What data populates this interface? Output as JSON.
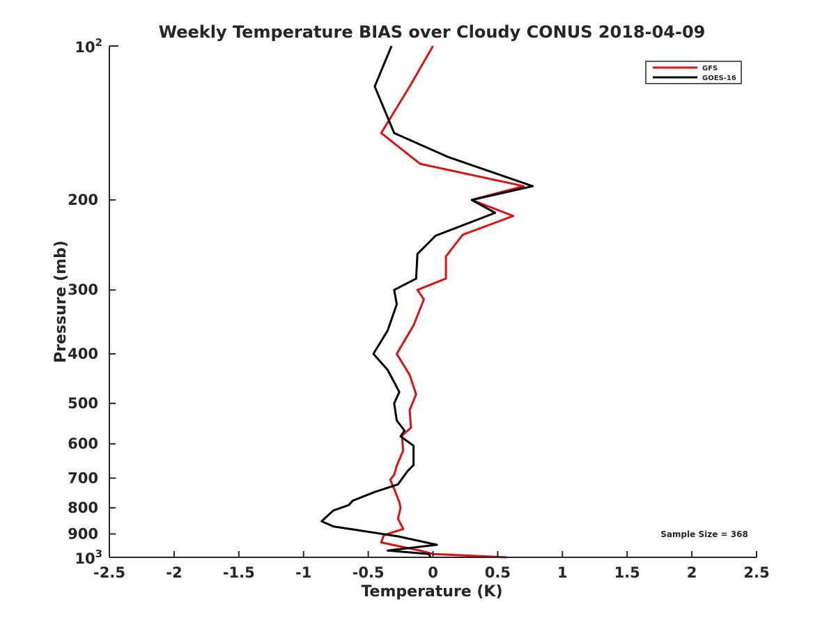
{
  "chart_data": {
    "type": "line",
    "title": "Weekly Temperature BIAS over Cloudy CONUS 2018-04-09",
    "xlabel": "Temperature (K)",
    "ylabel": "Pressure (mb)",
    "xlim": [
      -2.5,
      2.5
    ],
    "ylim": [
      100,
      1000
    ],
    "y_scale": "log",
    "y_reversed": true,
    "x_ticks": [
      -2.5,
      -2,
      -1.5,
      -1,
      -0.5,
      0,
      0.5,
      1,
      1.5,
      2,
      2.5
    ],
    "x_tick_labels": [
      "-2.5",
      "-2",
      "-1.5",
      "-1",
      "-0.5",
      "0",
      "0.5",
      "1",
      "1.5",
      "2",
      "2.5"
    ],
    "y_ticks": [
      200,
      300,
      400,
      500,
      600,
      700,
      800,
      900
    ],
    "y_tick_labels": [
      "200",
      "300",
      "400",
      "500",
      "600",
      "700",
      "800",
      "900"
    ],
    "y_decade_ticks": [
      {
        "value": 100,
        "base": "10",
        "exp": "2"
      },
      {
        "value": 1000,
        "base": "10",
        "exp": "3"
      }
    ],
    "grid": false,
    "legend_position": "top-right",
    "annotation": "Sample Size = 368",
    "series": [
      {
        "name": "GFS",
        "color": "#dd1111",
        "points": [
          [
            0.0,
            100
          ],
          [
            -0.18,
            120
          ],
          [
            -0.4,
            148
          ],
          [
            -0.1,
            170
          ],
          [
            0.7,
            188
          ],
          [
            0.3,
            200
          ],
          [
            0.62,
            215
          ],
          [
            0.23,
            234
          ],
          [
            0.1,
            258
          ],
          [
            0.1,
            285
          ],
          [
            -0.12,
            300
          ],
          [
            -0.07,
            313
          ],
          [
            -0.15,
            352
          ],
          [
            -0.28,
            400
          ],
          [
            -0.18,
            440
          ],
          [
            -0.13,
            480
          ],
          [
            -0.18,
            515
          ],
          [
            -0.17,
            558
          ],
          [
            -0.24,
            578
          ],
          [
            -0.23,
            618
          ],
          [
            -0.28,
            662
          ],
          [
            -0.3,
            690
          ],
          [
            -0.33,
            705
          ],
          [
            -0.3,
            735
          ],
          [
            -0.26,
            780
          ],
          [
            -0.25,
            800
          ],
          [
            -0.27,
            840
          ],
          [
            -0.23,
            880
          ],
          [
            -0.38,
            905
          ],
          [
            -0.4,
            935
          ],
          [
            -0.1,
            970
          ],
          [
            0.0,
            985
          ],
          [
            0.57,
            1000
          ]
        ]
      },
      {
        "name": "GOES-16",
        "color": "#000000",
        "points": [
          [
            -0.32,
            100
          ],
          [
            -0.45,
            120
          ],
          [
            -0.3,
            148
          ],
          [
            0.12,
            165
          ],
          [
            0.77,
            188
          ],
          [
            0.3,
            200
          ],
          [
            0.48,
            212
          ],
          [
            0.02,
            235
          ],
          [
            -0.12,
            255
          ],
          [
            -0.13,
            285
          ],
          [
            -0.3,
            300
          ],
          [
            -0.28,
            320
          ],
          [
            -0.35,
            360
          ],
          [
            -0.46,
            400
          ],
          [
            -0.35,
            430
          ],
          [
            -0.26,
            475
          ],
          [
            -0.3,
            500
          ],
          [
            -0.28,
            540
          ],
          [
            -0.22,
            565
          ],
          [
            -0.25,
            580
          ],
          [
            -0.15,
            605
          ],
          [
            -0.15,
            660
          ],
          [
            -0.2,
            680
          ],
          [
            -0.27,
            720
          ],
          [
            -0.45,
            745
          ],
          [
            -0.62,
            775
          ],
          [
            -0.65,
            790
          ],
          [
            -0.77,
            810
          ],
          [
            -0.86,
            850
          ],
          [
            -0.77,
            870
          ],
          [
            -0.27,
            910
          ],
          [
            0.03,
            945
          ],
          [
            -0.35,
            970
          ],
          [
            -0.03,
            985
          ],
          [
            -0.02,
            1000
          ]
        ]
      }
    ]
  }
}
